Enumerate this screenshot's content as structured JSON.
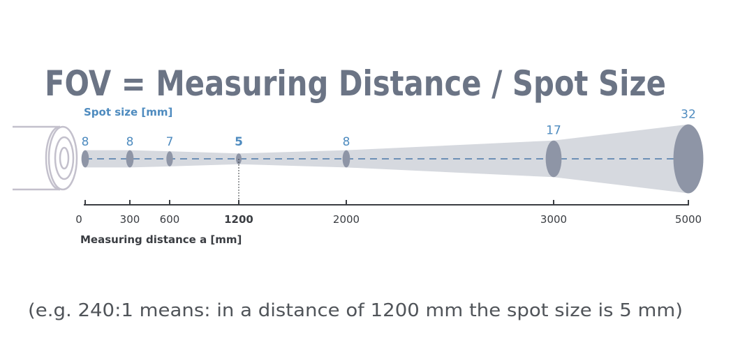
{
  "title": "FOV = Measuring Distance / Spot Size",
  "spot_size_label": "Spot size [mm]",
  "axis_label": "Measuring distance a [mm]",
  "caption": "(e.g. 240:1 means: in a distance of 1200 mm the spot size is 5 mm)",
  "colors": {
    "title": "#6b7485",
    "spot_label": "#4e8bbf",
    "beam": "#d6d9df",
    "spot": "#8e95a6",
    "dashed_axis": "#4a78a8",
    "sensor": "#c3c0cc",
    "axis": "#3a3d42",
    "caption": "#505459"
  },
  "icons": {
    "sensor": "sensor-lens-icon"
  },
  "chart_data": {
    "type": "diagram",
    "highlight_distance": 1200,
    "points": [
      {
        "distance": 0,
        "spot": 8,
        "distance_label": "0",
        "spot_label": "8"
      },
      {
        "distance": 300,
        "spot": 8,
        "distance_label": "300",
        "spot_label": "8"
      },
      {
        "distance": 600,
        "spot": 7,
        "distance_label": "600",
        "spot_label": "7"
      },
      {
        "distance": 1200,
        "spot": 5,
        "distance_label": "1200",
        "spot_label": "5"
      },
      {
        "distance": 2000,
        "spot": 8,
        "distance_label": "2000",
        "spot_label": "8"
      },
      {
        "distance": 3000,
        "spot": 17,
        "distance_label": "3000",
        "spot_label": "17"
      },
      {
        "distance": 5000,
        "spot": 32,
        "distance_label": "5000",
        "spot_label": "32"
      }
    ]
  }
}
